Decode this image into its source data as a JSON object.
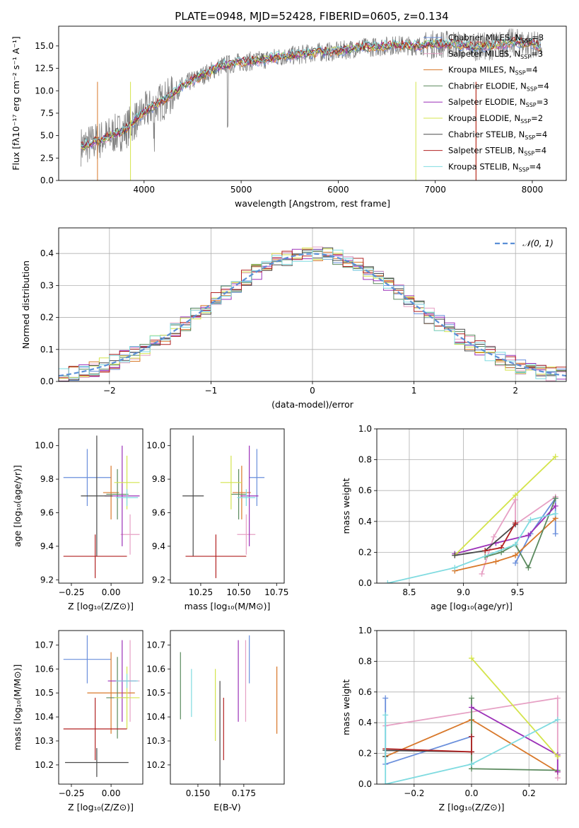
{
  "figure_title": "PLATE=0948, MJD=52428, FIBERID=0605, z=0.134",
  "legend_items": [
    {
      "label": "Chabrier MILES, N",
      "sub": "SSP",
      "suffix": "=3",
      "color": "#6a8fdc"
    },
    {
      "label": "Salpeter MILES, N",
      "sub": "SSP",
      "suffix": "=3",
      "color": "#e6a0c4"
    },
    {
      "label": "Kroupa MILES, N",
      "sub": "SSP",
      "suffix": "=4",
      "color": "#d8782a"
    },
    {
      "label": "Chabrier ELODIE, N",
      "sub": "SSP",
      "suffix": "=4",
      "color": "#5b8a5e"
    },
    {
      "label": "Salpeter ELODIE, N",
      "sub": "SSP",
      "suffix": "=3",
      "color": "#9b30b8"
    },
    {
      "label": "Kroupa ELODIE, N",
      "sub": "SSP",
      "suffix": "=2",
      "color": "#d4e44c"
    },
    {
      "label": "Chabrier STELIB, N",
      "sub": "SSP",
      "suffix": "=4",
      "color": "#4a4a4a"
    },
    {
      "label": "Salpeter STELIB, N",
      "sub": "SSP",
      "suffix": "=4",
      "color": "#b22222"
    },
    {
      "label": "Kroupa STELIB, N",
      "sub": "SSP",
      "suffix": "=4",
      "color": "#7fdbe0"
    }
  ],
  "chart_data": [
    {
      "type": "line",
      "panel": "spectrum",
      "xlabel": "wavelength [Angstrom, rest frame]",
      "ylabel": "Flux [fλ10⁻¹⁷ erg cm⁻² s⁻¹ A⁻¹]",
      "xlim": [
        3120,
        8350
      ],
      "ylim": [
        0,
        17.2
      ],
      "xticks": [
        "4000",
        "5000",
        "6000",
        "7000",
        "8000"
      ],
      "yticks": [
        "0.0",
        "2.5",
        "5.0",
        "7.5",
        "10.0",
        "12.5",
        "15.0"
      ],
      "x": [
        3350,
        3500,
        3650,
        3800,
        3950,
        4100,
        4250,
        4400,
        4600,
        4800,
        5000,
        5200,
        5400,
        5600,
        5800,
        6000,
        6200,
        6400,
        6600,
        6800,
        7000,
        7200,
        7400,
        7600,
        7800,
        8000,
        8100
      ],
      "model_flux": [
        3.8,
        4.3,
        5.0,
        5.6,
        7.2,
        8.3,
        9.2,
        10.6,
        11.7,
        12.8,
        13.2,
        13.4,
        13.8,
        14.0,
        14.3,
        14.4,
        14.8,
        14.9,
        15.1,
        15.0,
        15.2,
        15.2,
        14.9,
        15.0,
        15.4,
        15.2,
        14.8
      ],
      "data_flux": [
        3.4,
        4.1,
        4.5,
        5.8,
        7.0,
        7.8,
        9.9,
        10.2,
        11.4,
        13.5,
        12.6,
        13.9,
        13.1,
        14.8,
        13.7,
        14.9,
        14.1,
        15.3,
        14.6,
        15.6,
        14.7,
        15.9,
        14.3,
        15.5,
        15.0,
        15.6,
        14.5
      ]
    },
    {
      "type": "line",
      "panel": "residual_distribution",
      "xlabel": "(data-model)/error",
      "ylabel": "Normed distribution",
      "xlim": [
        -2.5,
        2.5
      ],
      "ylim": [
        0,
        0.48
      ],
      "xticks": [
        "−2",
        "−1",
        "0",
        "1",
        "2"
      ],
      "yticks": [
        "0.0",
        "0.1",
        "0.2",
        "0.3",
        "0.4"
      ],
      "legend": "𝒩(0, 1)",
      "grid": true,
      "bins_start": -2.5,
      "bin_width": 0.1
    },
    {
      "type": "scatter",
      "panel": "age_vs_Z",
      "xlabel": "Z [log₁₀(Z/Z⊙)]",
      "ylabel": "age  [log₁₀(age/yr)]",
      "xlim": [
        -0.33,
        0.2
      ],
      "ylim": [
        9.18,
        10.1
      ],
      "xticks": [
        "−0.25",
        "0.00"
      ],
      "yticks": [
        "9.2",
        "9.4",
        "9.6",
        "9.8",
        "10.0"
      ],
      "points": [
        {
          "x": -0.15,
          "y": 9.81,
          "xerr": 0.15,
          "yerr": 0.17,
          "color": "#6a8fdc"
        },
        {
          "x": 0.12,
          "y": 9.47,
          "xerr": 0.06,
          "yerr": 0.12,
          "color": "#e6a0c4"
        },
        {
          "x": 0.0,
          "y": 9.72,
          "xerr": 0.05,
          "yerr": 0.16,
          "color": "#d8782a"
        },
        {
          "x": 0.04,
          "y": 9.71,
          "xerr": 0.07,
          "yerr": 0.15,
          "color": "#5b8a5e"
        },
        {
          "x": 0.07,
          "y": 9.7,
          "xerr": 0.11,
          "yerr": 0.3,
          "color": "#9b30b8"
        },
        {
          "x": 0.1,
          "y": 9.78,
          "xerr": 0.08,
          "yerr": 0.16,
          "color": "#d4e44c"
        },
        {
          "x": -0.09,
          "y": 9.7,
          "xerr": 0.1,
          "yerr": 0.36,
          "color": "#4a4a4a"
        },
        {
          "x": -0.1,
          "y": 9.34,
          "xerr": 0.2,
          "yerr": 0.13,
          "color": "#b22222"
        },
        {
          "x": 0.1,
          "y": 9.69,
          "xerr": 0.07,
          "yerr": 0.05,
          "color": "#7fdbe0"
        }
      ]
    },
    {
      "type": "scatter",
      "panel": "age_vs_mass",
      "xlabel": "mass [log₁₀(M/M⊙)]",
      "ylabel": "",
      "xlim": [
        10.05,
        10.8
      ],
      "ylim": [
        9.18,
        10.1
      ],
      "xticks": [
        "10.25",
        "10.50",
        "10.75"
      ],
      "yticks": [
        "9.2",
        "9.4",
        "9.6",
        "9.8",
        "10.0"
      ],
      "points": [
        {
          "x": 10.62,
          "y": 9.81,
          "xerr": 0.05,
          "yerr": 0.17,
          "color": "#6a8fdc"
        },
        {
          "x": 10.55,
          "y": 9.47,
          "xerr": 0.06,
          "yerr": 0.12,
          "color": "#e6a0c4"
        },
        {
          "x": 10.52,
          "y": 9.72,
          "xerr": 0.06,
          "yerr": 0.16,
          "color": "#d8782a"
        },
        {
          "x": 10.5,
          "y": 9.71,
          "xerr": 0.05,
          "yerr": 0.15,
          "color": "#5b8a5e"
        },
        {
          "x": 10.57,
          "y": 9.7,
          "xerr": 0.06,
          "yerr": 0.3,
          "color": "#9b30b8"
        },
        {
          "x": 10.45,
          "y": 9.78,
          "xerr": 0.07,
          "yerr": 0.16,
          "color": "#d4e44c"
        },
        {
          "x": 10.2,
          "y": 9.7,
          "xerr": 0.07,
          "yerr": 0.36,
          "color": "#4a4a4a"
        },
        {
          "x": 10.35,
          "y": 9.34,
          "xerr": 0.2,
          "yerr": 0.13,
          "color": "#b22222"
        },
        {
          "x": 10.55,
          "y": 9.69,
          "xerr": 0.06,
          "yerr": 0.05,
          "color": "#7fdbe0"
        }
      ]
    },
    {
      "type": "line",
      "panel": "mass_weight_vs_age",
      "xlabel": "age  [log₁₀(age/yr)]",
      "ylabel": "mass weight",
      "xlim": [
        8.2,
        9.95
      ],
      "ylim": [
        0,
        1.0
      ],
      "xticks": [
        "8.5",
        "9.0",
        "9.5"
      ],
      "yticks": [
        "0.0",
        "0.2",
        "0.4",
        "0.6",
        "0.8",
        "1.0"
      ],
      "grid": true,
      "series": [
        {
          "color": "#6a8fdc",
          "x": [
            9.48,
            9.62,
            9.85,
            9.85
          ],
          "y": [
            0.13,
            0.32,
            0.55,
            0.32
          ]
        },
        {
          "color": "#e6a0c4",
          "x": [
            9.17,
            9.28,
            9.48,
            9.48,
            9.85
          ],
          "y": [
            0.06,
            0.3,
            0.54,
            0.38,
            0.56
          ]
        },
        {
          "color": "#d8782a",
          "x": [
            8.92,
            9.3,
            9.48,
            9.85
          ],
          "y": [
            0.08,
            0.14,
            0.18,
            0.42
          ]
        },
        {
          "color": "#5b8a5e",
          "x": [
            9.2,
            9.35,
            9.48,
            9.6,
            9.85
          ],
          "y": [
            0.17,
            0.2,
            0.25,
            0.1,
            0.55
          ]
        },
        {
          "color": "#9b30b8",
          "x": [
            8.92,
            9.3,
            9.6,
            9.85
          ],
          "y": [
            0.19,
            0.26,
            0.31,
            0.5
          ]
        },
        {
          "color": "#d4e44c",
          "x": [
            8.92,
            9.48,
            9.85
          ],
          "y": [
            0.18,
            0.57,
            0.82
          ]
        },
        {
          "color": "#4a4a4a",
          "x": [
            8.92,
            9.2,
            9.48
          ],
          "y": [
            0.18,
            0.21,
            0.38
          ]
        },
        {
          "color": "#b22222",
          "x": [
            9.2,
            9.35,
            9.48
          ],
          "y": [
            0.21,
            0.23,
            0.39
          ]
        },
        {
          "color": "#7fdbe0",
          "x": [
            8.3,
            8.92,
            9.48,
            9.62,
            9.85
          ],
          "y": [
            0.0,
            0.1,
            0.25,
            0.41,
            0.45
          ]
        }
      ]
    },
    {
      "type": "scatter",
      "panel": "mass_vs_Z",
      "xlabel": "Z [log₁₀(Z/Z⊙)]",
      "ylabel": "mass [log₁₀(M/M⊙)]",
      "xlim": [
        -0.33,
        0.2
      ],
      "ylim": [
        10.12,
        10.76
      ],
      "xticks": [
        "−0.25",
        "0.00"
      ],
      "yticks": [
        "10.2",
        "10.3",
        "10.4",
        "10.5",
        "10.6",
        "10.7"
      ],
      "points": [
        {
          "x": -0.15,
          "y": 10.64,
          "xerr": 0.15,
          "yerr": 0.1,
          "color": "#6a8fdc"
        },
        {
          "x": 0.12,
          "y": 10.55,
          "xerr": 0.06,
          "yerr": 0.17,
          "color": "#e6a0c4"
        },
        {
          "x": 0.0,
          "y": 10.5,
          "xerr": 0.15,
          "yerr": 0.17,
          "color": "#d8782a"
        },
        {
          "x": 0.04,
          "y": 10.48,
          "xerr": 0.07,
          "yerr": 0.17,
          "color": "#5b8a5e"
        },
        {
          "x": 0.07,
          "y": 10.55,
          "xerr": 0.09,
          "yerr": 0.17,
          "color": "#9b30b8"
        },
        {
          "x": 0.1,
          "y": 10.48,
          "xerr": 0.08,
          "yerr": 0.13,
          "color": "#d4e44c"
        },
        {
          "x": -0.09,
          "y": 10.21,
          "xerr": 0.2,
          "yerr": 0.06,
          "color": "#4a4a4a"
        },
        {
          "x": -0.1,
          "y": 10.35,
          "xerr": 0.2,
          "yerr": 0.13,
          "color": "#b22222"
        },
        {
          "x": 0.1,
          "y": 10.55,
          "xerr": 0.07,
          "yerr": 0.03,
          "color": "#7fdbe0"
        }
      ]
    },
    {
      "type": "scatter",
      "panel": "mass_vs_EBV",
      "xlabel": "E(B-V)",
      "ylabel": "",
      "xlim": [
        0.135,
        0.197
      ],
      "ylim": [
        10.12,
        10.76
      ],
      "xticks": [
        "0.150",
        "0.175"
      ],
      "yticks": [
        "10.2",
        "10.3",
        "10.4",
        "10.5",
        "10.6",
        "10.7"
      ],
      "points": [
        {
          "x": 0.178,
          "y": 10.64,
          "xerr": 0,
          "yerr": 0.1,
          "color": "#6a8fdc"
        },
        {
          "x": 0.176,
          "y": 10.55,
          "xerr": 0,
          "yerr": 0.17,
          "color": "#e6a0c4"
        },
        {
          "x": 0.193,
          "y": 10.47,
          "xerr": 0,
          "yerr": 0.14,
          "color": "#d8782a"
        },
        {
          "x": 0.1405,
          "y": 10.53,
          "xerr": 0,
          "yerr": 0.14,
          "color": "#5b8a5e"
        },
        {
          "x": 0.172,
          "y": 10.55,
          "xerr": 0,
          "yerr": 0.17,
          "color": "#9b30b8"
        },
        {
          "x": 0.1595,
          "y": 10.45,
          "xerr": 0,
          "yerr": 0.15,
          "color": "#d4e44c"
        },
        {
          "x": 0.162,
          "y": 10.33,
          "xerr": 0,
          "yerr": 0.22,
          "color": "#4a4a4a"
        },
        {
          "x": 0.164,
          "y": 10.35,
          "xerr": 0,
          "yerr": 0.13,
          "color": "#b22222"
        },
        {
          "x": 0.1465,
          "y": 10.5,
          "xerr": 0,
          "yerr": 0.1,
          "color": "#7fdbe0"
        }
      ]
    },
    {
      "type": "line",
      "panel": "mass_weight_vs_Z",
      "xlabel": "Z [log₁₀(Z/Z⊙)]",
      "ylabel": "mass weight",
      "xlim": [
        -0.33,
        0.33
      ],
      "ylim": [
        0,
        1.0
      ],
      "xticks": [
        "−0.2",
        "0.0",
        "0.2"
      ],
      "yticks": [
        "0.0",
        "0.2",
        "0.4",
        "0.6",
        "0.8",
        "1.0"
      ],
      "grid": true,
      "series": [
        {
          "color": "#6a8fdc",
          "x": [
            -0.3,
            -0.3,
            0.0,
            0.0
          ],
          "y": [
            0.56,
            0.13,
            0.31,
            0.31
          ]
        },
        {
          "color": "#e6a0c4",
          "x": [
            -0.3,
            0.3,
            0.3
          ],
          "y": [
            0.38,
            0.56,
            0.04
          ]
        },
        {
          "color": "#d8782a",
          "x": [
            -0.3,
            0.0,
            0.3
          ],
          "y": [
            0.18,
            0.42,
            0.08
          ]
        },
        {
          "color": "#5b8a5e",
          "x": [
            0.0,
            0.0,
            0.3
          ],
          "y": [
            0.56,
            0.1,
            0.09
          ]
        },
        {
          "color": "#9b30b8",
          "x": [
            0.0,
            0.3,
            0.3
          ],
          "y": [
            0.5,
            0.19,
            0.08
          ]
        },
        {
          "color": "#d4e44c",
          "x": [
            0.0,
            0.3
          ],
          "y": [
            0.82,
            0.18
          ]
        },
        {
          "color": "#4a4a4a",
          "x": [
            -0.3,
            -0.3,
            0.0
          ],
          "y": [
            0.18,
            0.22,
            0.21
          ]
        },
        {
          "color": "#b22222",
          "x": [
            -0.3,
            0.0,
            0.0
          ],
          "y": [
            0.23,
            0.21,
            0.31
          ]
        },
        {
          "color": "#7fdbe0",
          "x": [
            -0.3,
            -0.3,
            0.0,
            0.3
          ],
          "y": [
            0.45,
            0.0,
            0.13,
            0.42
          ]
        }
      ]
    }
  ]
}
